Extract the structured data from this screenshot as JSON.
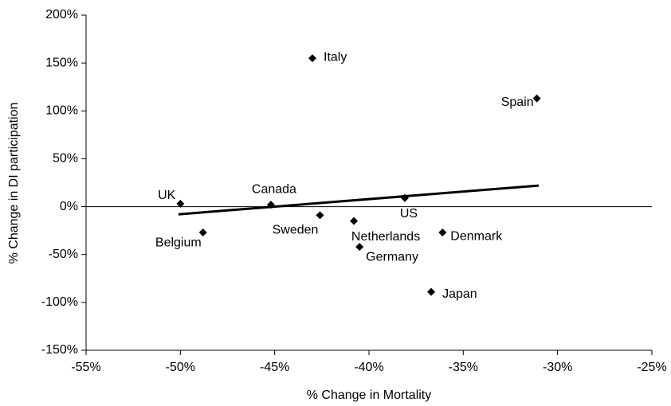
{
  "chart_data": {
    "type": "scatter",
    "xlabel": "% Change in Mortality",
    "ylabel": "% Change in DI participation",
    "point_labels": [
      "UK",
      "Belgium",
      "Canada",
      "Italy",
      "Sweden",
      "Netherlands",
      "Germany",
      "US",
      "Denmark",
      "Japan",
      "Spain"
    ],
    "x": [
      -50.0,
      -48.8,
      -45.2,
      -43.0,
      -42.6,
      -40.8,
      -40.5,
      -38.1,
      -36.1,
      -36.7,
      -31.1
    ],
    "y": [
      3,
      -27,
      2,
      155,
      -9,
      -15,
      -42,
      9,
      -27,
      -89,
      113
    ],
    "color": "#000000",
    "trendline": {
      "x": [
        -50.1,
        -31.0
      ],
      "y": [
        -8,
        22
      ]
    },
    "xlim": [
      -55,
      -25
    ],
    "ylim": [
      -150,
      200
    ],
    "xticks": [
      {
        "value": -55,
        "label": "-55%"
      },
      {
        "value": -50,
        "label": "-50%"
      },
      {
        "value": -45,
        "label": "-45%"
      },
      {
        "value": -40,
        "label": "-40%"
      },
      {
        "value": -35,
        "label": "-35%"
      },
      {
        "value": -30,
        "label": "-30%"
      },
      {
        "value": -25,
        "label": "-25%"
      }
    ],
    "yticks": [
      {
        "value": -150,
        "label": "-150%"
      },
      {
        "value": -100,
        "label": "-100%"
      },
      {
        "value": -50,
        "label": "-50%"
      },
      {
        "value": 0,
        "label": "0%"
      },
      {
        "value": 50,
        "label": "50%"
      },
      {
        "value": 100,
        "label": "100%"
      },
      {
        "value": 150,
        "label": "150%"
      },
      {
        "value": 200,
        "label": "200%"
      }
    ]
  }
}
